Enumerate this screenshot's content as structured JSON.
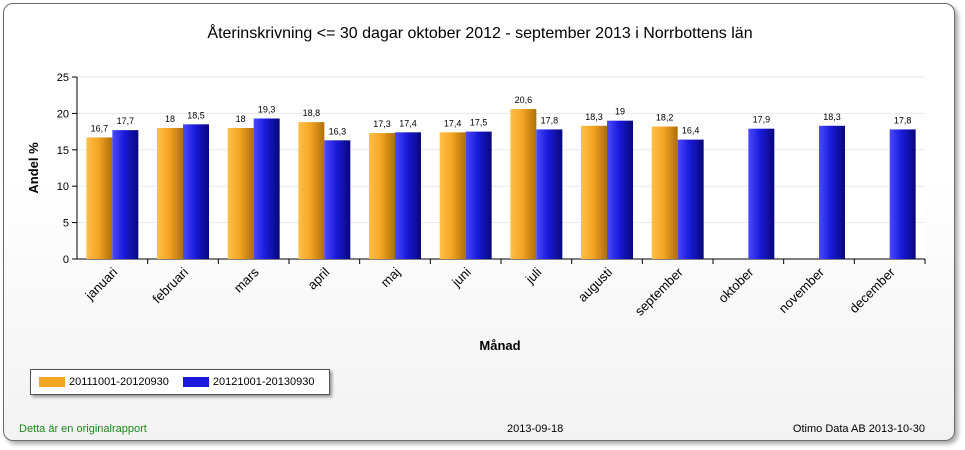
{
  "chart_data": {
    "type": "bar",
    "title": "Återinskrivning <= 30 dagar oktober 2012 - september 2013 i Norrbottens län",
    "xlabel": "Månad",
    "ylabel": "Andel %",
    "ylim": [
      0,
      25
    ],
    "yticks": [
      "0",
      "5",
      "10",
      "15",
      "20",
      "25"
    ],
    "grid": true,
    "legend_position": "bottom-left",
    "categories": [
      "januari",
      "februari",
      "mars",
      "april",
      "maj",
      "juni",
      "juli",
      "augusti",
      "september",
      "oktober",
      "november",
      "december"
    ],
    "series": [
      {
        "name": "20111001-20120930",
        "color": "#f5a623",
        "values": [
          16.7,
          18,
          18,
          18.8,
          17.3,
          17.4,
          20.6,
          18.3,
          18.2,
          null,
          null,
          null
        ],
        "labels": [
          "16,7",
          "18",
          "18",
          "18,8",
          "17,3",
          "17,4",
          "20,6",
          "18,3",
          "18,2",
          "",
          "",
          ""
        ]
      },
      {
        "name": "20121001-20130930",
        "color": "#1a1adb",
        "values": [
          17.7,
          18.5,
          19.3,
          16.3,
          17.4,
          17.5,
          17.8,
          19,
          16.4,
          17.9,
          18.3,
          17.8
        ],
        "labels": [
          "17,7",
          "18,5",
          "19,3",
          "16,3",
          "17,4",
          "17,5",
          "17,8",
          "19",
          "16,4",
          "17,9",
          "18,3",
          "17,8"
        ]
      }
    ]
  },
  "footer": {
    "left": "Detta är en originalrapport",
    "center": "2013-09-18",
    "right": "Otimo Data AB 2013-10-30"
  }
}
